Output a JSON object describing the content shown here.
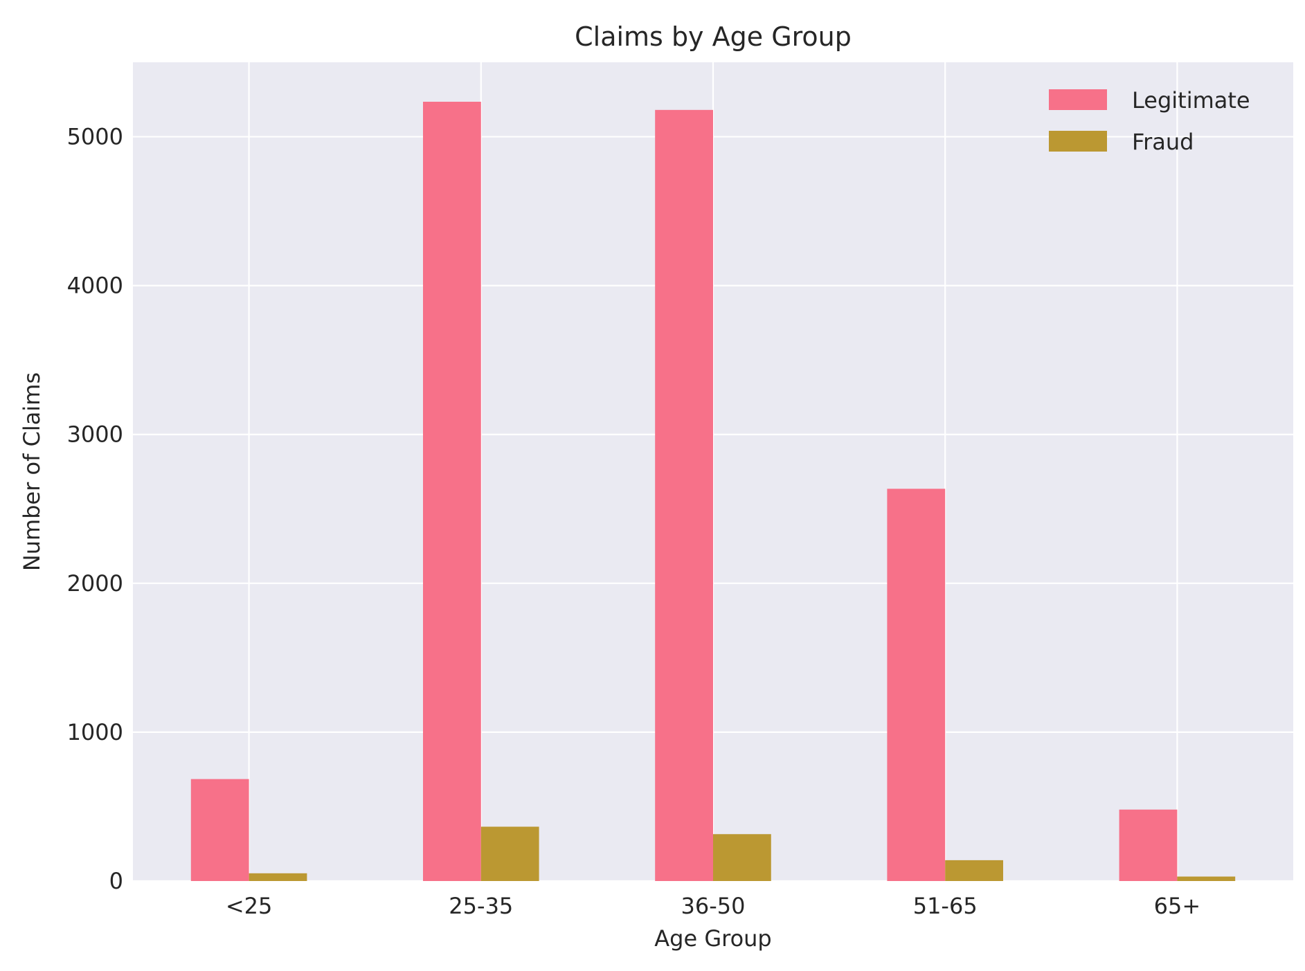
{
  "chart_data": {
    "type": "bar",
    "title": "Claims by Age Group",
    "xlabel": "Age Group",
    "ylabel": "Number of Claims",
    "categories": [
      "<25",
      "25-35",
      "36-50",
      "51-65",
      "65+"
    ],
    "series": [
      {
        "name": "Legitimate",
        "color": "#f77189",
        "values": [
          685,
          5235,
          5180,
          2635,
          480
        ]
      },
      {
        "name": "Fraud",
        "color": "#bb9832",
        "values": [
          52,
          365,
          315,
          140,
          30
        ]
      }
    ],
    "ylim": [
      0,
      5500
    ],
    "yticks": [
      0,
      1000,
      2000,
      3000,
      4000,
      5000
    ],
    "grid": true,
    "legend_position": "top-right",
    "background_color": "#eaeaf2",
    "grid_color": "#ffffff"
  }
}
